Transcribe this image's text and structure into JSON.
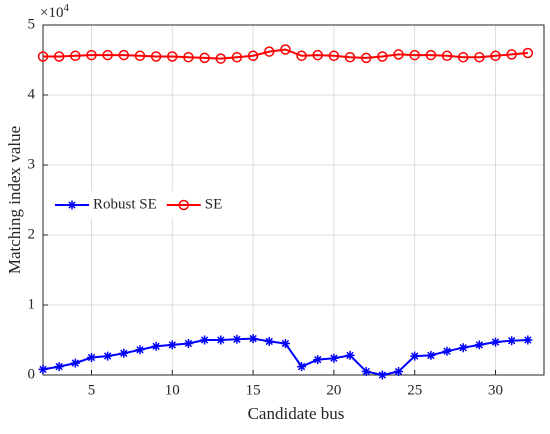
{
  "chart_data": {
    "type": "line",
    "x_label": "Candidate bus",
    "y_label": "Matching index value",
    "y_offset_label": {
      "base": "×10",
      "exponent": "4"
    },
    "x": [
      2,
      3,
      4,
      5,
      6,
      7,
      8,
      9,
      10,
      11,
      12,
      13,
      14,
      15,
      16,
      17,
      18,
      19,
      20,
      21,
      22,
      23,
      24,
      25,
      26,
      27,
      28,
      29,
      30,
      31,
      32
    ],
    "series": [
      {
        "name": "Robust SE",
        "color": "#0000ff",
        "marker": "asterisk",
        "values": [
          0.08,
          0.12,
          0.17,
          0.25,
          0.27,
          0.31,
          0.36,
          0.41,
          0.43,
          0.45,
          0.5,
          0.5,
          0.51,
          0.52,
          0.48,
          0.45,
          0.12,
          0.22,
          0.24,
          0.28,
          0.05,
          0.0,
          0.05,
          0.27,
          0.28,
          0.34,
          0.39,
          0.43,
          0.47,
          0.49,
          0.5
        ]
      },
      {
        "name": "SE",
        "color": "#ff0000",
        "marker": "circle",
        "values": [
          4.55,
          4.55,
          4.56,
          4.57,
          4.57,
          4.57,
          4.56,
          4.55,
          4.55,
          4.54,
          4.53,
          4.52,
          4.54,
          4.56,
          4.62,
          4.65,
          4.56,
          4.57,
          4.56,
          4.54,
          4.53,
          4.55,
          4.58,
          4.57,
          4.57,
          4.56,
          4.54,
          4.54,
          4.56,
          4.58,
          4.6
        ]
      }
    ],
    "xlim": [
      2,
      33
    ],
    "xticks": [
      5,
      10,
      15,
      20,
      25,
      30
    ],
    "ylim": [
      0,
      5
    ],
    "yticks": [
      0,
      1,
      2,
      3,
      4,
      5
    ],
    "grid": true,
    "legend": "center left"
  }
}
